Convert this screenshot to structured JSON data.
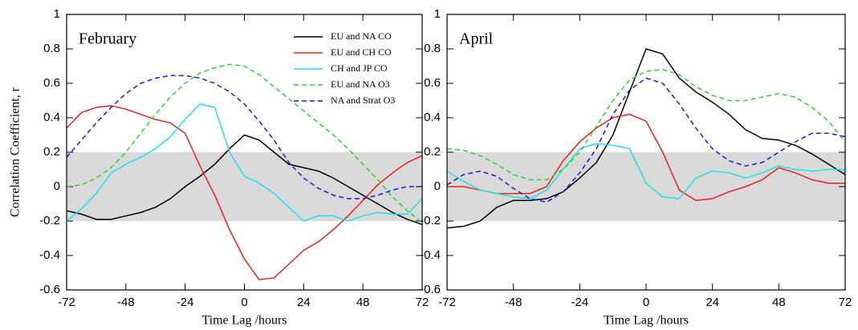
{
  "chart_data": [
    {
      "type": "line",
      "title": "February",
      "xlabel": "Time Lag  /hours",
      "ylabel": "Correlation Coefficient, r",
      "x": [
        -72,
        -66,
        -60,
        -54,
        -48,
        -42,
        -36,
        -30,
        -24,
        -18,
        -12,
        -6,
        0,
        6,
        12,
        18,
        24,
        30,
        36,
        42,
        48,
        54,
        60,
        66,
        72
      ],
      "series": [
        {
          "name": "EU and NA CO",
          "color": "#000000",
          "dashed": false,
          "values": [
            -0.14,
            -0.16,
            -0.19,
            -0.19,
            -0.17,
            -0.15,
            -0.12,
            -0.07,
            0.0,
            0.06,
            0.13,
            0.22,
            0.3,
            0.27,
            0.2,
            0.13,
            0.11,
            0.09,
            0.05,
            0.0,
            -0.05,
            -0.1,
            -0.15,
            -0.19,
            -0.22
          ]
        },
        {
          "name": "EU and CH CO",
          "color": "#e8221a",
          "dashed": false,
          "values": [
            0.34,
            0.43,
            0.46,
            0.47,
            0.45,
            0.42,
            0.39,
            0.37,
            0.31,
            0.12,
            -0.05,
            -0.25,
            -0.42,
            -0.54,
            -0.53,
            -0.45,
            -0.37,
            -0.32,
            -0.25,
            -0.17,
            -0.08,
            0.01,
            0.08,
            0.14,
            0.18
          ]
        },
        {
          "name": "CH and JP CO",
          "color": "#22e0e8",
          "dashed": false,
          "values": [
            -0.2,
            -0.13,
            -0.04,
            0.08,
            0.13,
            0.17,
            0.22,
            0.29,
            0.39,
            0.48,
            0.46,
            0.2,
            0.06,
            0.02,
            -0.04,
            -0.12,
            -0.2,
            -0.17,
            -0.17,
            -0.2,
            -0.17,
            -0.15,
            -0.16,
            -0.16,
            -0.07
          ]
        },
        {
          "name": "EU and NA O3",
          "color": "#2ed12e",
          "dashed": true,
          "values": [
            0.0,
            0.01,
            0.05,
            0.11,
            0.2,
            0.31,
            0.42,
            0.52,
            0.6,
            0.66,
            0.69,
            0.71,
            0.7,
            0.65,
            0.58,
            0.51,
            0.44,
            0.37,
            0.3,
            0.22,
            0.13,
            0.04,
            -0.06,
            -0.14,
            -0.21
          ]
        },
        {
          "name": "NA and Strat O3",
          "color": "#1c1cc8",
          "dashed": true,
          "values": [
            0.17,
            0.27,
            0.37,
            0.46,
            0.54,
            0.6,
            0.63,
            0.645,
            0.645,
            0.63,
            0.6,
            0.55,
            0.48,
            0.38,
            0.27,
            0.14,
            0.05,
            -0.01,
            -0.05,
            -0.07,
            -0.07,
            -0.05,
            -0.02,
            0.0,
            0.0
          ]
        }
      ],
      "xlim": [
        -72,
        72
      ],
      "ylim": [
        -0.6,
        1
      ],
      "xticks": [
        -72,
        -48,
        -24,
        0,
        24,
        48,
        72
      ],
      "yticks": [
        -0.6,
        -0.4,
        -0.2,
        0,
        0.2,
        0.4,
        0.6,
        0.8,
        1
      ],
      "shaded_band": [
        -0.2,
        0.2
      ],
      "legend": "upper right"
    },
    {
      "type": "line",
      "title": "April",
      "xlabel": "Time Lag  /hours",
      "x": [
        -72,
        -66,
        -60,
        -54,
        -48,
        -42,
        -36,
        -30,
        -24,
        -18,
        -12,
        -6,
        0,
        6,
        12,
        18,
        24,
        30,
        36,
        42,
        48,
        54,
        60,
        66,
        72
      ],
      "series": [
        {
          "color": "#000000",
          "dashed": false,
          "values": [
            -0.24,
            -0.23,
            -0.2,
            -0.12,
            -0.08,
            -0.08,
            -0.07,
            -0.03,
            0.05,
            0.14,
            0.3,
            0.55,
            0.8,
            0.77,
            0.63,
            0.55,
            0.49,
            0.42,
            0.33,
            0.28,
            0.27,
            0.24,
            0.19,
            0.13,
            0.07
          ]
        },
        {
          "color": "#e8221a",
          "dashed": false,
          "values": [
            0.0,
            0.0,
            -0.02,
            -0.04,
            -0.04,
            -0.04,
            0.0,
            0.15,
            0.26,
            0.34,
            0.4,
            0.42,
            0.38,
            0.2,
            -0.02,
            -0.08,
            -0.07,
            -0.03,
            0.0,
            0.04,
            0.11,
            0.08,
            0.04,
            0.02,
            0.02
          ]
        },
        {
          "color": "#22e0e8",
          "dashed": false,
          "values": [
            0.09,
            0.03,
            -0.02,
            -0.04,
            -0.06,
            -0.07,
            -0.02,
            0.1,
            0.22,
            0.25,
            0.24,
            0.22,
            0.02,
            -0.06,
            -0.07,
            0.05,
            0.09,
            0.08,
            0.05,
            0.08,
            0.12,
            0.1,
            0.09,
            0.1,
            0.1
          ]
        },
        {
          "color": "#2ed12e",
          "dashed": true,
          "values": [
            0.22,
            0.21,
            0.18,
            0.13,
            0.07,
            0.04,
            0.04,
            0.1,
            0.2,
            0.35,
            0.5,
            0.62,
            0.67,
            0.68,
            0.65,
            0.58,
            0.53,
            0.5,
            0.5,
            0.52,
            0.54,
            0.52,
            0.46,
            0.38,
            0.26
          ]
        },
        {
          "color": "#1c1cc8",
          "dashed": true,
          "values": [
            0.01,
            0.07,
            0.09,
            0.06,
            -0.01,
            -0.07,
            -0.09,
            -0.03,
            0.08,
            0.22,
            0.42,
            0.56,
            0.63,
            0.6,
            0.48,
            0.34,
            0.22,
            0.15,
            0.12,
            0.14,
            0.2,
            0.26,
            0.31,
            0.31,
            0.29
          ]
        }
      ],
      "xlim": [
        -72,
        72
      ],
      "ylim": [
        -0.6,
        1
      ],
      "xticks": [
        -72,
        -48,
        -24,
        0,
        24,
        48,
        72
      ],
      "yticks": [
        -0.6,
        -0.4,
        -0.2,
        0,
        0.2,
        0.4,
        0.6,
        0.8,
        1
      ],
      "shaded_band": [
        -0.2,
        0.2
      ]
    }
  ]
}
